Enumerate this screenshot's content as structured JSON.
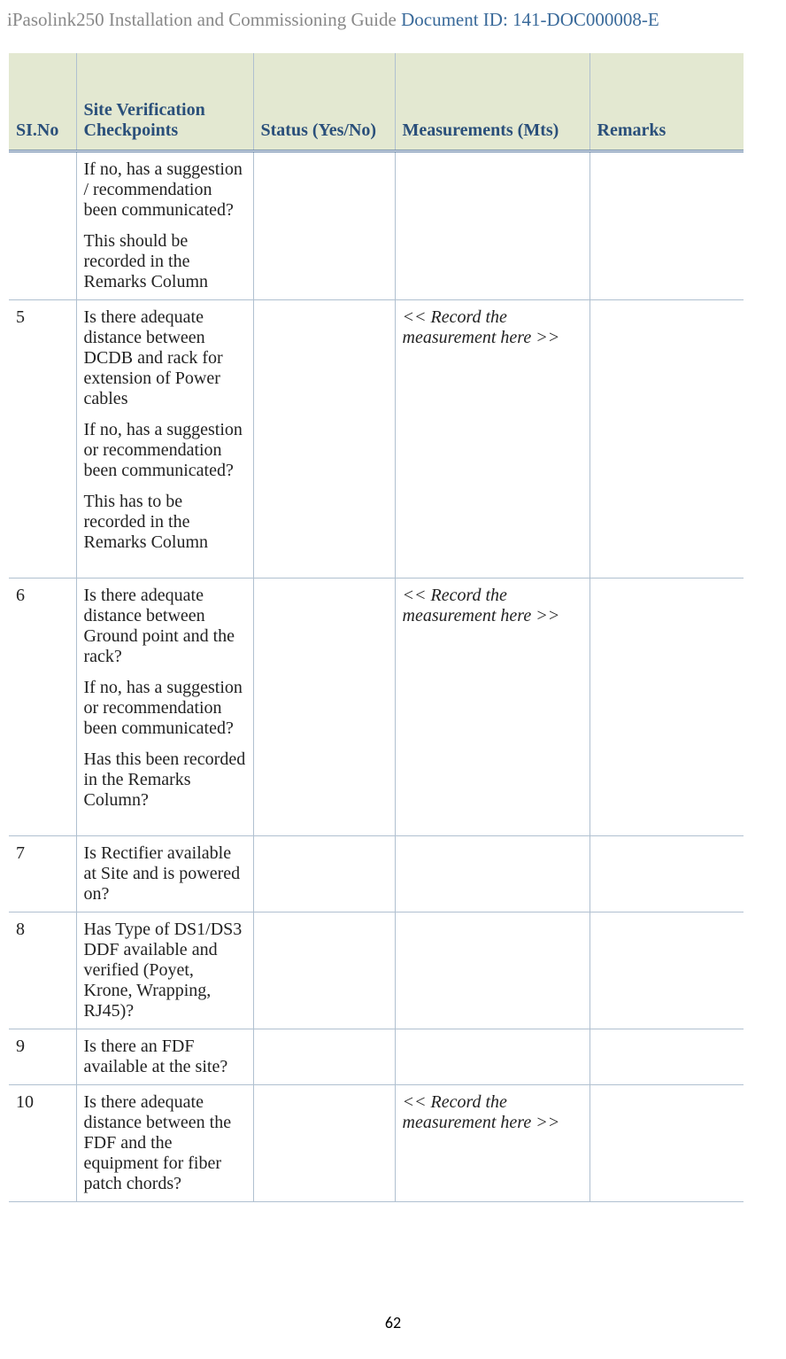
{
  "header": {
    "title_prefix": "iPasolink250 Installation and Commissioning Guide ",
    "docid": "Document ID: 141-DOC000008-E"
  },
  "page_number": "62",
  "table": {
    "headers": {
      "si_no": "SI.No",
      "checkpoints": "Site Verification Checkpoints",
      "status": "Status (Yes/No)",
      "measurements": "Measurements (Mts)",
      "remarks": "Remarks"
    },
    "rows": [
      {
        "si_no": "",
        "checkpoint_paras": [
          "If no, has a suggestion / recommendation been communicated?",
          "This should be recorded in the Remarks Column"
        ],
        "status": "",
        "measurement": "",
        "remarks": ""
      },
      {
        "si_no": "5",
        "checkpoint_paras": [
          "Is there adequate distance between DCDB and rack for extension of Power cables",
          "If no, has a suggestion or recommendation been communicated?",
          "This has to be recorded in the Remarks Column"
        ],
        "status": "",
        "measurement": "<< Record the measurement here >>",
        "measurement_italic": true,
        "remarks": "",
        "tall": true
      },
      {
        "si_no": "6",
        "checkpoint_paras": [
          "Is there adequate distance between Ground point and the rack?",
          "If no, has a suggestion or recommendation been communicated?",
          "Has this been recorded in the Remarks Column?"
        ],
        "status": "",
        "measurement": "<< Record the measurement here >>",
        "measurement_italic": true,
        "remarks": "",
        "tall": true
      },
      {
        "si_no": "7",
        "checkpoint_paras": [
          "Is Rectifier available at Site and is powered on?"
        ],
        "status": "",
        "measurement": "",
        "remarks": ""
      },
      {
        "si_no": "8",
        "checkpoint_paras": [
          "Has Type of  DS1/DS3 DDF available and verified (Poyet, Krone, Wrapping, RJ45)?"
        ],
        "status": "",
        "measurement": "",
        "remarks": ""
      },
      {
        "si_no": "9",
        "checkpoint_paras": [
          "Is there an FDF available at the site?"
        ],
        "status": "",
        "measurement": "",
        "remarks": ""
      },
      {
        "si_no": "10",
        "checkpoint_paras": [
          "Is there adequate distance between the FDF and the equipment for fiber patch chords?"
        ],
        "status": "",
        "measurement": "<< Record the measurement here >>",
        "measurement_italic": true,
        "remarks": ""
      }
    ]
  }
}
